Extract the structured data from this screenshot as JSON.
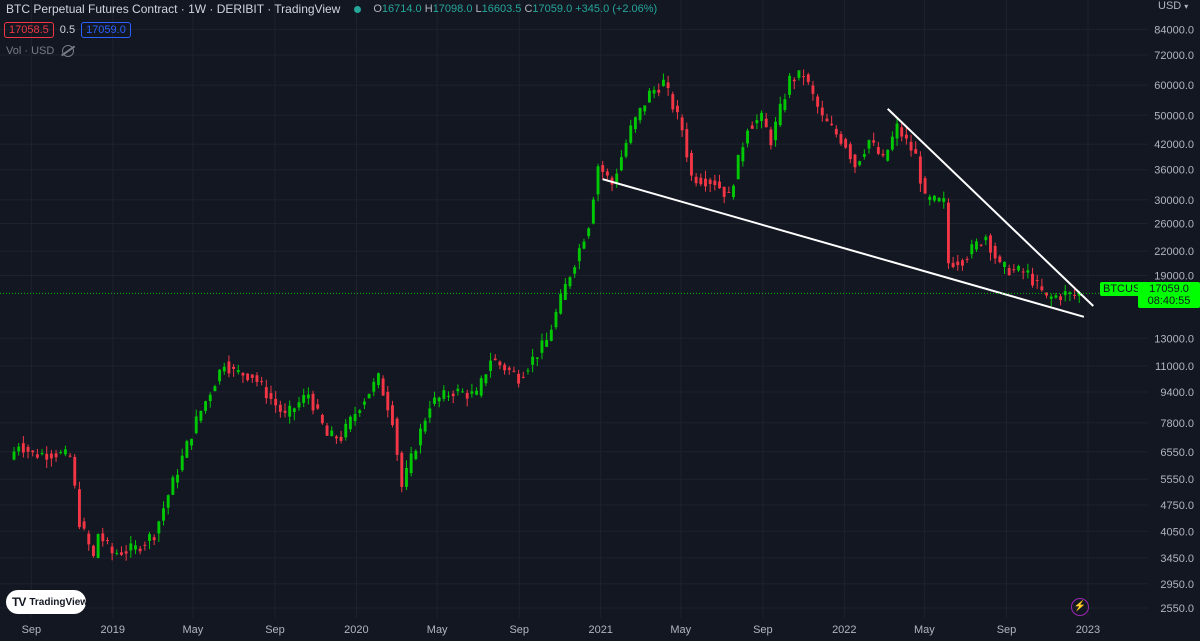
{
  "header": {
    "title": "BTC Perpetual Futures Contract · 1W · DERIBIT · TradingView",
    "ohlc": {
      "o_label": "O",
      "o": "16714.0",
      "h_label": "H",
      "h": "17098.0",
      "l_label": "L",
      "l": "16603.5",
      "c_label": "C",
      "c": "17059.0",
      "change": "+345.0 (+2.06%)"
    },
    "sell_price": "17058.5",
    "spread": "0.5",
    "buy_price": "17059.0",
    "volume_label": "Vol · USD"
  },
  "axis": {
    "currency": "USD"
  },
  "price_tag": {
    "symbol": "BTCUSD.P",
    "price": "17059.0",
    "countdown": "08:40:55"
  },
  "branding": {
    "logo_text": "TradingView"
  },
  "colors": {
    "background": "#131722",
    "up": "#00c805",
    "down": "#f23645",
    "grid": "#1e222d",
    "trendline": "#ffffff",
    "last_price": "#00ff00"
  },
  "chart_data": {
    "type": "candlestick",
    "symbol": "BTCUSD.P",
    "timeframe": "1W",
    "y_scale": "log",
    "ylim": [
      2400,
      90000
    ],
    "y_ticks": [
      84000,
      72000,
      60000,
      50000,
      42000,
      36000,
      30000,
      26000,
      22000,
      19000,
      13000,
      11000,
      9400,
      7800,
      6550,
      5550,
      4750,
      4050,
      3450,
      2950,
      2550
    ],
    "x_ticks": [
      {
        "label": "Sep",
        "date": "2018-09-01"
      },
      {
        "label": "2019",
        "date": "2019-01-01"
      },
      {
        "label": "May",
        "date": "2019-05-01"
      },
      {
        "label": "Sep",
        "date": "2019-09-01"
      },
      {
        "label": "2020",
        "date": "2020-01-01"
      },
      {
        "label": "May",
        "date": "2020-05-01"
      },
      {
        "label": "Sep",
        "date": "2020-09-01"
      },
      {
        "label": "2021",
        "date": "2021-01-01"
      },
      {
        "label": "May",
        "date": "2021-05-01"
      },
      {
        "label": "Sep",
        "date": "2021-09-01"
      },
      {
        "label": "2022",
        "date": "2022-01-01"
      },
      {
        "label": "May",
        "date": "2022-05-01"
      },
      {
        "label": "Sep",
        "date": "2022-09-01"
      },
      {
        "label": "2023",
        "date": "2023-01-01"
      }
    ],
    "xlim": [
      "2018-07-16",
      "2023-04-01"
    ],
    "last_price": 17059.0,
    "anchors": [
      [
        "2018-08-06",
        6250
      ],
      [
        "2018-08-20",
        6900
      ],
      [
        "2018-09-10",
        6450
      ],
      [
        "2018-10-15",
        6500
      ],
      [
        "2018-11-05",
        6350
      ],
      [
        "2018-11-19",
        4300
      ],
      [
        "2018-12-10",
        3450
      ],
      [
        "2018-12-17",
        4000
      ],
      [
        "2019-01-07",
        3550
      ],
      [
        "2019-02-11",
        3650
      ],
      [
        "2019-03-11",
        4000
      ],
      [
        "2019-04-01",
        5050
      ],
      [
        "2019-05-13",
        7900
      ],
      [
        "2019-06-24",
        11300
      ],
      [
        "2019-07-08",
        10600
      ],
      [
        "2019-08-05",
        10400
      ],
      [
        "2019-09-23",
        8100
      ],
      [
        "2019-10-28",
        9300
      ],
      [
        "2019-11-25",
        7200
      ],
      [
        "2019-12-16",
        7150
      ],
      [
        "2020-01-13",
        8700
      ],
      [
        "2020-02-10",
        10200
      ],
      [
        "2020-03-02",
        8000
      ],
      [
        "2020-03-16",
        5300
      ],
      [
        "2020-04-27",
        8750
      ],
      [
        "2020-06-01",
        9450
      ],
      [
        "2020-07-06",
        9200
      ],
      [
        "2020-07-27",
        11500
      ],
      [
        "2020-09-07",
        10300
      ],
      [
        "2020-10-19",
        12800
      ],
      [
        "2020-11-16",
        17800
      ],
      [
        "2020-12-21",
        26000
      ],
      [
        "2021-01-04",
        37000
      ],
      [
        "2021-01-25",
        33000
      ],
      [
        "2021-02-22",
        46000
      ],
      [
        "2021-03-22",
        57000
      ],
      [
        "2021-04-12",
        61000
      ],
      [
        "2021-05-10",
        46000
      ],
      [
        "2021-05-24",
        34500
      ],
      [
        "2021-06-28",
        33500
      ],
      [
        "2021-07-19",
        30500
      ],
      [
        "2021-08-16",
        47000
      ],
      [
        "2021-09-06",
        49000
      ],
      [
        "2021-09-20",
        43000
      ],
      [
        "2021-10-18",
        62000
      ],
      [
        "2021-11-08",
        64000
      ],
      [
        "2021-12-06",
        49000
      ],
      [
        "2022-01-10",
        42000
      ],
      [
        "2022-01-24",
        37000
      ],
      [
        "2022-02-14",
        43000
      ],
      [
        "2022-03-07",
        38000
      ],
      [
        "2022-03-28",
        46500
      ],
      [
        "2022-04-25",
        39000
      ],
      [
        "2022-05-09",
        30000
      ],
      [
        "2022-06-06",
        29500
      ],
      [
        "2022-06-13",
        20500
      ],
      [
        "2022-07-04",
        21000
      ],
      [
        "2022-08-08",
        24200
      ],
      [
        "2022-08-29",
        20000
      ],
      [
        "2022-10-10",
        19200
      ],
      [
        "2022-11-07",
        16500
      ],
      [
        "2022-12-05",
        17000
      ],
      [
        "2022-12-19",
        16800
      ],
      [
        "2022-12-26",
        17059
      ]
    ],
    "trendlines": [
      {
        "name": "lower-trendline",
        "from": [
          "2021-01-04",
          34000
        ],
        "to": [
          "2022-12-26",
          14800
        ]
      },
      {
        "name": "upper-trendline",
        "from": [
          "2022-03-07",
          52000
        ],
        "to": [
          "2023-01-09",
          15800
        ]
      }
    ]
  }
}
